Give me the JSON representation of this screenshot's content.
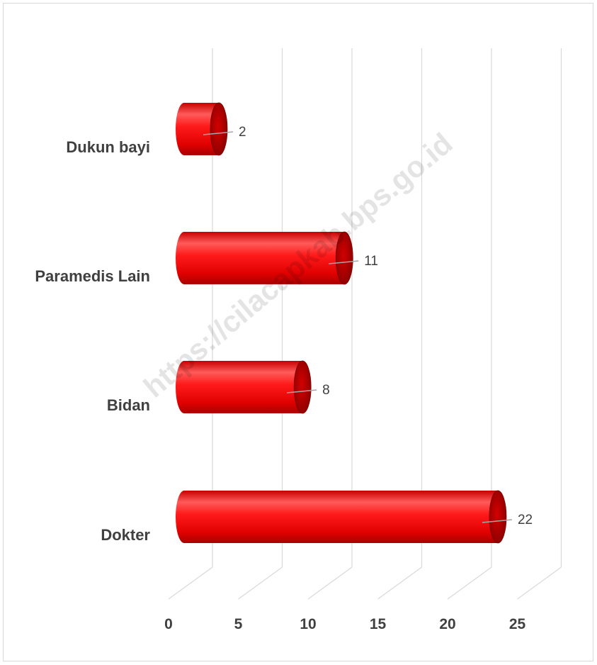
{
  "chart_data": {
    "type": "bar",
    "orientation": "horizontal",
    "style": "3d-cylinder",
    "categories": [
      "Dukun bayi",
      "Paramedis Lain",
      "Bidan",
      "Dokter"
    ],
    "values": [
      2,
      11,
      8,
      22
    ],
    "xticks": [
      0,
      5,
      10,
      15,
      20,
      25
    ],
    "xlim": [
      0,
      25
    ],
    "grid": true,
    "legend": "none",
    "bar_color": "#ff0000",
    "title": "",
    "xlabel": "",
    "ylabel": ""
  },
  "watermark": "https://cilacapkab.bps.go.id",
  "colors": {
    "bar_main": "#ff0000",
    "bar_dark": "#b30000",
    "bar_highlight": "#ff6a6a",
    "grid": "#d9d9d9",
    "text": "#404040"
  }
}
